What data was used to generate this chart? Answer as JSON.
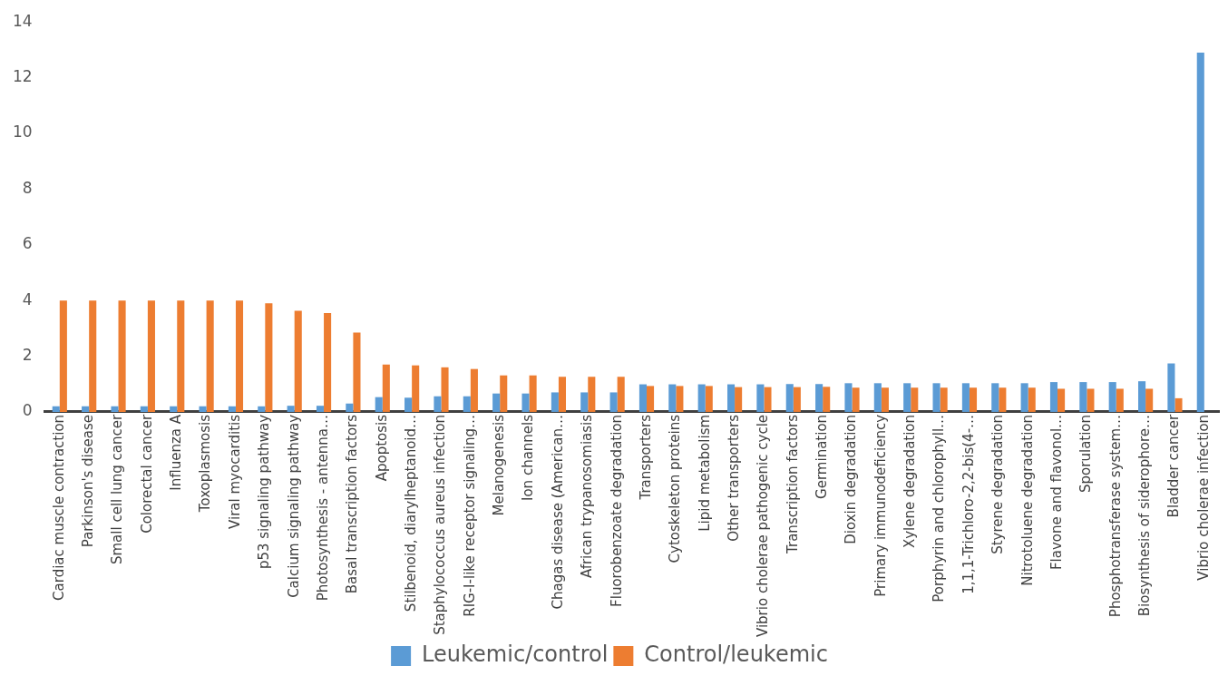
{
  "chart_data": {
    "type": "bar",
    "categories": [
      "Cardiac muscle contraction",
      "Parkinson's disease",
      "Small cell lung cancer",
      "Colorectal cancer",
      "Influenza A",
      "Toxoplasmosis",
      "Viral myocarditis",
      "p53 signaling pathway",
      "Calcium signaling pathway",
      "Photosynthesis - antenna…",
      "Basal transcription factors",
      "Apoptosis",
      "Stilbenoid, diarylheptanoid…",
      "Staphylococcus aureus infection",
      "RIG-I-like receptor signaling…",
      "Melanogenesis",
      "Ion channels",
      "Chagas disease (American…",
      "African trypanosomiasis",
      "Fluorobenzoate degradation",
      "Transporters",
      "Cytoskeleton proteins",
      "Lipid metabolism",
      "Other transporters",
      "Vibrio cholerae pathogenic cycle",
      "Transcription factors",
      "Germination",
      "Dioxin degradation",
      "Primary immunodeficiency",
      "Xylene degradation",
      "Porphyrin and chlorophyll…",
      "1,1,1-Trichloro-2,2-bis(4-…",
      "Styrene degradation",
      "Nitrotoluene degradation",
      "Flavone and flavonol…",
      "Sporulation",
      "Phosphotransferase system…",
      "Biosynthesis of siderophore…",
      "Bladder cancer",
      "Vibrio cholerae infection"
    ],
    "series": [
      {
        "name": "Leukemic/control",
        "color": "#5b9bd5",
        "values": [
          0.2,
          0.2,
          0.2,
          0.2,
          0.2,
          0.2,
          0.2,
          0.2,
          0.22,
          0.22,
          0.3,
          0.53,
          0.51,
          0.56,
          0.56,
          0.66,
          0.66,
          0.7,
          0.7,
          0.7,
          0.99,
          0.99,
          0.99,
          0.99,
          0.99,
          1.0,
          1.0,
          1.03,
          1.03,
          1.03,
          1.03,
          1.03,
          1.03,
          1.03,
          1.07,
          1.07,
          1.07,
          1.1,
          1.74,
          12.9
        ]
      },
      {
        "name": "Control/leukemic",
        "color": "#ed7d31",
        "values": [
          4.0,
          4.0,
          4.0,
          4.0,
          4.0,
          4.0,
          4.0,
          3.9,
          3.63,
          3.55,
          2.85,
          1.7,
          1.67,
          1.6,
          1.54,
          1.31,
          1.31,
          1.26,
          1.26,
          1.26,
          0.93,
          0.93,
          0.93,
          0.89,
          0.89,
          0.89,
          0.9,
          0.87,
          0.87,
          0.87,
          0.87,
          0.87,
          0.87,
          0.87,
          0.83,
          0.83,
          0.83,
          0.83,
          0.49,
          null
        ]
      }
    ],
    "ylim": [
      0,
      14
    ],
    "yticks": [
      0,
      2,
      4,
      6,
      8,
      10,
      12,
      14
    ],
    "grid": false,
    "legend": "bottom"
  }
}
